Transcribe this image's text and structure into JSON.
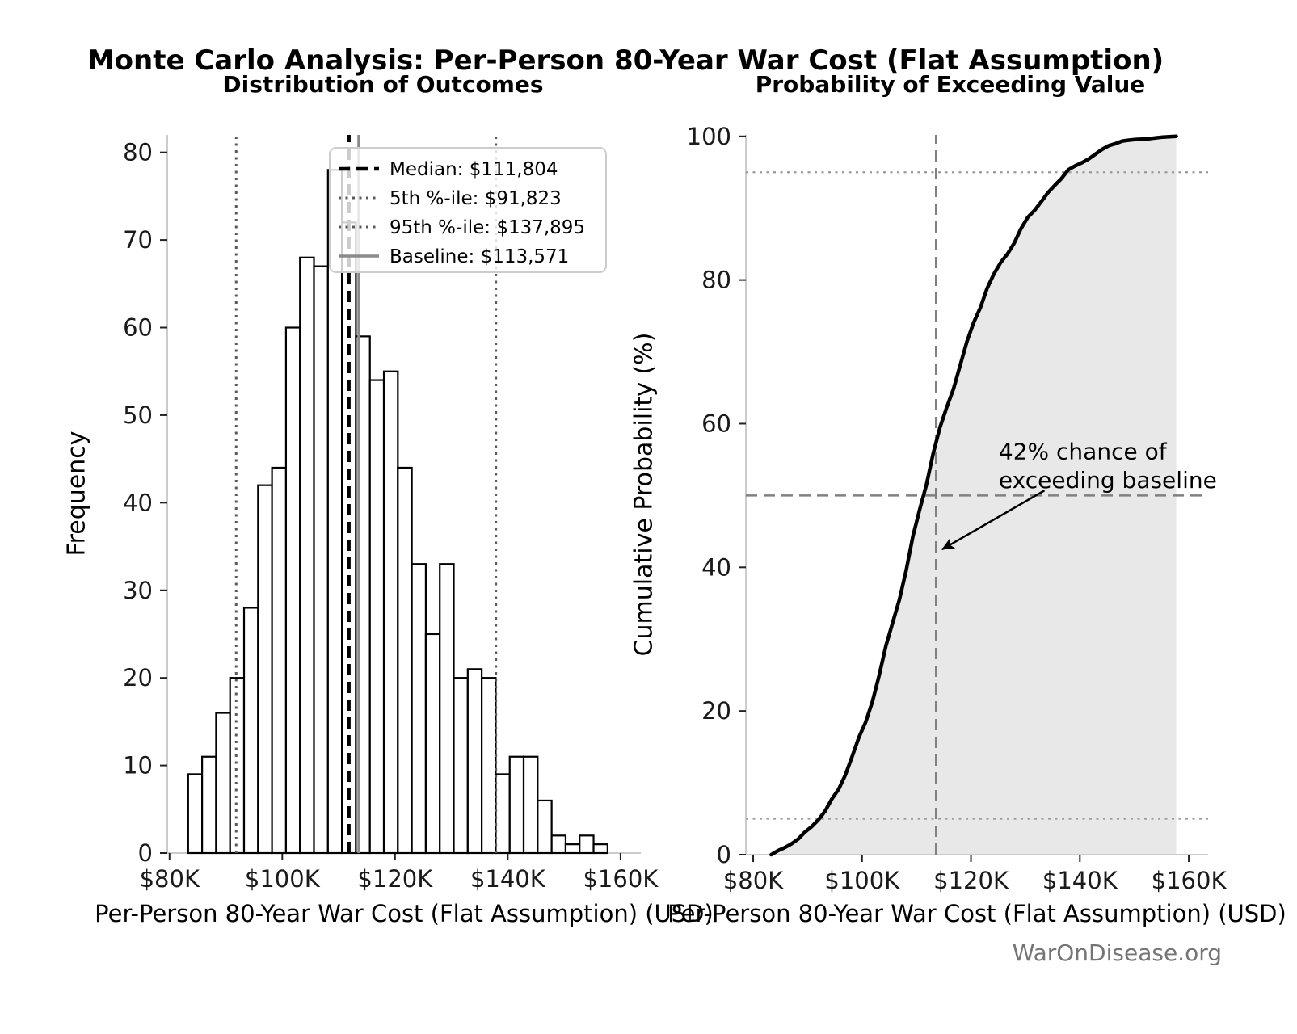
{
  "header": {
    "title": "Monte Carlo Analysis: Per-Person 80-Year War Cost (Flat Assumption)"
  },
  "watermark": "WarOnDisease.org",
  "chart_data": [
    {
      "type": "bar",
      "title": "Distribution of Outcomes",
      "xlabel": "Per-Person 80-Year War Cost (Flat Assumption) (USD)",
      "ylabel": "Frequency",
      "bin_start": 83300,
      "bin_width": 2480,
      "counts": [
        9,
        11,
        16,
        20,
        28,
        42,
        44,
        60,
        68,
        67,
        78,
        72,
        59,
        54,
        55,
        44,
        33,
        25,
        33,
        20,
        21,
        20,
        9,
        11,
        11,
        6,
        2,
        1,
        2,
        1
      ],
      "bar_fill": "#ffffff",
      "bar_edge": "#000000",
      "xlim": [
        79600,
        163600
      ],
      "ylim": [
        0,
        82
      ],
      "x_ticks": [
        {
          "v": 80000,
          "label": "$80K"
        },
        {
          "v": 100000,
          "label": "$100K"
        },
        {
          "v": 120000,
          "label": "$120K"
        },
        {
          "v": 140000,
          "label": "$140K"
        },
        {
          "v": 160000,
          "label": "$160K"
        }
      ],
      "y_ticks": [
        {
          "v": 0,
          "label": "0"
        },
        {
          "v": 10,
          "label": "10"
        },
        {
          "v": 20,
          "label": "20"
        },
        {
          "v": 30,
          "label": "30"
        },
        {
          "v": 40,
          "label": "40"
        },
        {
          "v": 50,
          "label": "50"
        },
        {
          "v": 60,
          "label": "60"
        },
        {
          "v": 70,
          "label": "70"
        },
        {
          "v": 80,
          "label": "80"
        }
      ],
      "ref_lines": [
        {
          "name": "median",
          "label": "Median: $111,804",
          "value": 111804,
          "style": "dashed",
          "color": "#000000",
          "width": 4.5
        },
        {
          "name": "percentile-5",
          "label": "5th %-ile: $91,823",
          "value": 91823,
          "style": "dotted",
          "color": "#595959",
          "width": 3
        },
        {
          "name": "percentile-95",
          "label": "95th %-ile: $137,895",
          "value": 137895,
          "style": "dotted",
          "color": "#595959",
          "width": 3
        },
        {
          "name": "baseline",
          "label": "Baseline: $113,571",
          "value": 113571,
          "style": "solid",
          "color": "#8a8a8a",
          "width": 3.5
        }
      ],
      "legend_position": "upper right",
      "spine_color": "#cccccc",
      "grid": false
    },
    {
      "type": "line",
      "title": "Probability of Exceeding Value",
      "xlabel": "Per-Person 80-Year War Cost (Flat Assumption) (USD)",
      "ylabel": "Cumulative Probability (%)",
      "xlim": [
        78660,
        163550
      ],
      "ylim": [
        0,
        100.2
      ],
      "x_ticks": [
        {
          "v": 80000,
          "label": "$80K"
        },
        {
          "v": 100000,
          "label": "$100K"
        },
        {
          "v": 120000,
          "label": "$120K"
        },
        {
          "v": 140000,
          "label": "$140K"
        },
        {
          "v": 160000,
          "label": "$160K"
        }
      ],
      "y_ticks": [
        {
          "v": 0,
          "label": "0"
        },
        {
          "v": 20,
          "label": "20"
        },
        {
          "v": 40,
          "label": "40"
        },
        {
          "v": 60,
          "label": "60"
        },
        {
          "v": 80,
          "label": "80"
        },
        {
          "v": 100,
          "label": "100"
        }
      ],
      "line_color": "#000000",
      "line_width": 4.5,
      "fill_color": "#e8e8e8",
      "h_lines": [
        {
          "name": "fifty-percent",
          "value": 50,
          "style": "dashed",
          "color": "#808080",
          "width": 2.5
        },
        {
          "name": "ninety-five-percent",
          "value": 95,
          "style": "dotted",
          "color": "#999999",
          "width": 2.2
        },
        {
          "name": "five-percent",
          "value": 5,
          "style": "dotted",
          "color": "#999999",
          "width": 2.2
        }
      ],
      "v_lines": [
        {
          "name": "baseline",
          "value": 113571,
          "style": "dashed",
          "color": "#808080",
          "width": 2.5
        }
      ],
      "annotation": {
        "lines": [
          "42% chance of",
          "exceeding baseline"
        ],
        "text_x": 125100,
        "text_y_pct": [
          56.2,
          52.2
        ],
        "arrow": {
          "x1": 133500,
          "y1_pct": 50.7,
          "x2": 114700,
          "y2_pct": 42.5
        }
      },
      "spine_color": "#cccccc",
      "grid": false
    }
  ]
}
